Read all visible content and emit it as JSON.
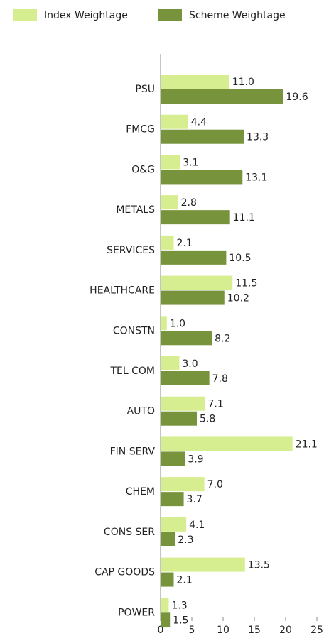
{
  "chart_data": {
    "type": "hbar",
    "categories": [
      "PSU",
      "FMCG",
      "O&G",
      "METALS",
      "SERVICES",
      "HEALTHCARE",
      "CONSTN",
      "TEL COM",
      "AUTO",
      "FIN SERV",
      "CHEM",
      "CONS SER",
      "CAP GOODS",
      "POWER"
    ],
    "series": [
      {
        "name": "Index Weightage",
        "color": "#d6ee8f",
        "values": [
          11.0,
          4.4,
          3.1,
          2.8,
          2.1,
          11.5,
          1.0,
          3.0,
          7.1,
          21.1,
          7.0,
          4.1,
          13.5,
          1.3
        ],
        "value_labels": [
          "11.0",
          "4.4",
          "3.1",
          "2.8",
          "2.1",
          "11.5",
          "1.0",
          "3.0",
          "7.1",
          "21.1",
          "7.0",
          "4.1",
          "13.5",
          "1.3"
        ]
      },
      {
        "name": "Scheme Weightage",
        "color": "#77933c",
        "values": [
          19.6,
          13.3,
          13.1,
          11.1,
          10.5,
          10.2,
          8.2,
          7.8,
          5.8,
          3.9,
          3.7,
          2.3,
          2.1,
          1.5
        ],
        "value_labels": [
          "19.6",
          "13.3",
          "13.1",
          "11.1",
          "10.5",
          "10.2",
          "8.2",
          "7.8",
          "5.8",
          "3.9",
          "3.7",
          "2.3",
          "2.1",
          "1.5"
        ]
      }
    ],
    "xlim": [
      0,
      25
    ],
    "xticks": [
      0,
      5,
      10,
      15,
      20,
      25
    ],
    "legend": "top"
  }
}
